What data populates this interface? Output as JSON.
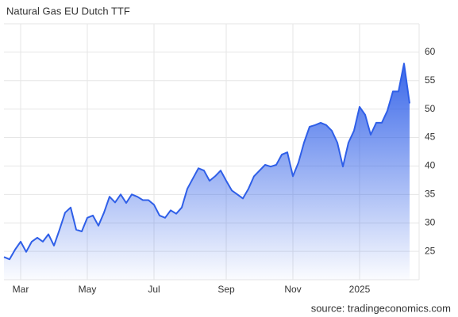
{
  "chart_data": {
    "type": "area",
    "title": "Natural Gas EU Dutch TTF",
    "source": "source: tradingeconomics.com",
    "color": "#2f5fe8",
    "grid": true,
    "categories": [
      null,
      null,
      null,
      "Mar",
      null,
      null,
      null,
      null,
      null,
      null,
      null,
      null,
      null,
      null,
      null,
      "May",
      null,
      null,
      null,
      null,
      null,
      null,
      null,
      null,
      null,
      null,
      null,
      "Jul",
      null,
      null,
      null,
      null,
      null,
      null,
      null,
      null,
      null,
      null,
      null,
      null,
      "Sep",
      null,
      null,
      null,
      null,
      null,
      null,
      null,
      null,
      null,
      null,
      null,
      "Nov",
      null,
      null,
      null,
      null,
      null,
      null,
      null,
      null,
      null,
      null,
      null,
      "2025",
      null,
      null,
      null,
      null,
      null,
      null,
      null,
      null,
      null
    ],
    "values": [
      24,
      23.6,
      25.3,
      26.7,
      24.9,
      26.7,
      27.4,
      26.7,
      28,
      26,
      28.8,
      31.8,
      32.7,
      28.8,
      28.5,
      30.9,
      31.3,
      29.5,
      31.8,
      34.6,
      33.6,
      35,
      33.5,
      35,
      34.6,
      34,
      34,
      33.2,
      31.3,
      30.9,
      32.2,
      31.6,
      32.7,
      36,
      37.8,
      39.6,
      39.2,
      37.4,
      38.2,
      39.2,
      37.4,
      35.7,
      35,
      34.3,
      36,
      38.2,
      39.2,
      40.2,
      39.9,
      40.2,
      42,
      42.4,
      38.2,
      40.6,
      44.1,
      46.9,
      47.2,
      47.6,
      47.2,
      46.2,
      44.1,
      39.9,
      44.1,
      46.2,
      50.4,
      49,
      45.5,
      47.6,
      47.6,
      49.7,
      53.1,
      53.1,
      58,
      51
    ],
    "ylim": [
      20,
      65
    ],
    "yticks": [
      25,
      30,
      35,
      40,
      45,
      50,
      55,
      60
    ]
  }
}
